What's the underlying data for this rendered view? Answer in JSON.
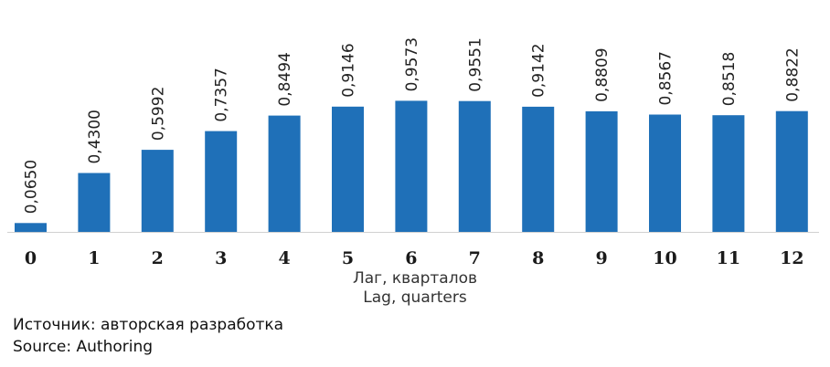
{
  "chart_data": {
    "type": "bar",
    "categories": [
      "0",
      "1",
      "2",
      "3",
      "4",
      "5",
      "6",
      "7",
      "8",
      "9",
      "10",
      "11",
      "12"
    ],
    "values": [
      0.065,
      0.43,
      0.5992,
      0.7357,
      0.8494,
      0.9146,
      0.9573,
      0.9551,
      0.9142,
      0.8809,
      0.8567,
      0.8518,
      0.8822
    ],
    "value_labels": [
      "0,0650",
      "0,4300",
      "0,5992",
      "0,7357",
      "0,8494",
      "0,9146",
      "0,9573",
      "0,9551",
      "0,9142",
      "0,8809",
      "0,8567",
      "0,8518",
      "0,8822"
    ],
    "xlabel": "Лаг, кварталов",
    "xlabel_en": "Lag, quarters",
    "ylabel": "",
    "title": "",
    "ylim": [
      0,
      1
    ],
    "grid": false,
    "bar_color": "#1f70b8"
  },
  "source": {
    "ru": "Источник: авторская разработка",
    "en": "Source: Authoring"
  }
}
